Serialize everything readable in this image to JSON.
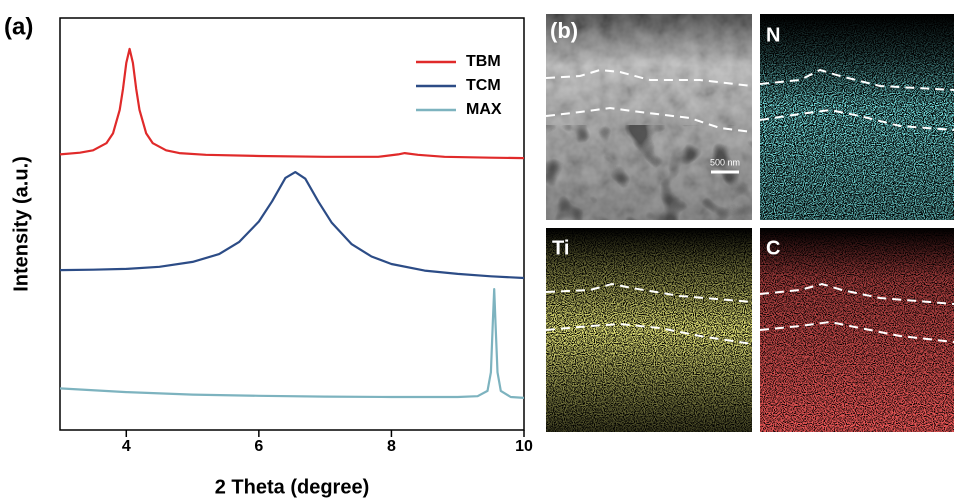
{
  "chart_data": {
    "type": "line",
    "panel_label": "(a)",
    "xlabel": "2 Theta (degree)",
    "ylabel": "Intensity (a.u.)",
    "xlim": [
      3,
      10
    ],
    "xticks": [
      4,
      6,
      8,
      10
    ],
    "ylim": [
      0,
      100
    ],
    "grid": false,
    "legend": "upper-right",
    "series": [
      {
        "name": "TBM",
        "color": "#e02a2a",
        "x": [
          3,
          3.3,
          3.5,
          3.7,
          3.8,
          3.9,
          3.95,
          4.0,
          4.05,
          4.1,
          4.15,
          4.2,
          4.3,
          4.4,
          4.6,
          4.8,
          5.2,
          6,
          7,
          7.8,
          8.1,
          8.2,
          8.4,
          8.8,
          9.5,
          10
        ],
        "values": [
          66.9,
          67.3,
          67.9,
          69.6,
          72,
          77.7,
          82.8,
          89.1,
          92.5,
          89.1,
          82.8,
          77.7,
          72,
          69.6,
          67.9,
          67.2,
          66.8,
          66.5,
          66.3,
          66.3,
          66.9,
          67.2,
          66.8,
          66.3,
          66.1,
          66
        ]
      },
      {
        "name": "TCM",
        "color": "#2c4c86",
        "x": [
          3,
          3.5,
          4,
          4.5,
          5,
          5.4,
          5.7,
          6,
          6.2,
          6.4,
          6.55,
          6.7,
          6.9,
          7.1,
          7.4,
          7.7,
          8,
          8.5,
          9,
          9.5,
          10
        ],
        "values": [
          38.8,
          38.9,
          39.1,
          39.6,
          40.8,
          42.7,
          45.6,
          50.6,
          55.5,
          61.2,
          62.6,
          61.0,
          55.4,
          50.3,
          45.1,
          42.1,
          40.3,
          38.7,
          37.9,
          37.3,
          36.9
        ]
      },
      {
        "name": "MAX",
        "color": "#7db3bf",
        "x": [
          3,
          4,
          5,
          6,
          7,
          8,
          9,
          9.3,
          9.45,
          9.5,
          9.53,
          9.55,
          9.57,
          9.6,
          9.65,
          9.8,
          10
        ],
        "values": [
          10.1,
          9.2,
          8.6,
          8.3,
          8.1,
          8.0,
          8.0,
          8.2,
          9.5,
          14,
          26,
          34.2,
          26,
          14,
          9.5,
          8.0,
          7.8
        ]
      }
    ]
  },
  "micrographs": {
    "label": "(b)",
    "scale_bar": "500 nm",
    "maps": [
      "N",
      "Ti",
      "C"
    ]
  }
}
